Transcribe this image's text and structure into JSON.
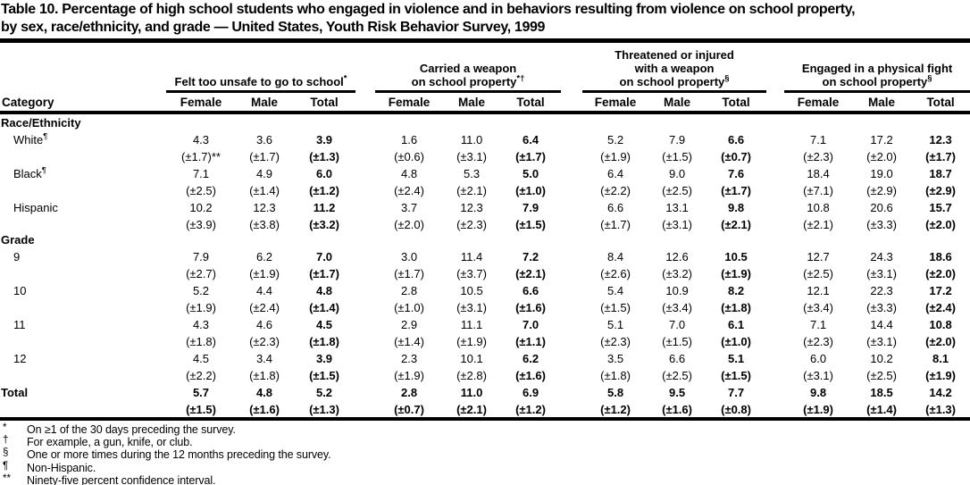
{
  "page": {
    "title_line1": "Table 10. Percentage of high school students who engaged in violence and in behaviors resulting from violence on school property,",
    "title_line2": "by sex, race/ethnicity, and grade — United States, Youth Risk Behavior Survey, 1999"
  },
  "table": {
    "category_header": "Category",
    "col_headers": [
      "Female",
      "Male",
      "Total"
    ],
    "groups": [
      {
        "lines": [
          "Felt too unsafe to go to school"
        ],
        "sup": "*"
      },
      {
        "lines": [
          "Carried a weapon",
          "on school property"
        ],
        "sup": "*†"
      },
      {
        "lines": [
          "Threatened or injured",
          "with a weapon",
          "on school property"
        ],
        "sup": "§"
      },
      {
        "lines": [
          "Engaged in a physical fight",
          "on school property"
        ],
        "sup": "§"
      }
    ],
    "rows": [
      {
        "type": "section",
        "label": "Race/Ethnicity"
      },
      {
        "type": "data",
        "label": "White",
        "label_sup": "¶",
        "indent": true,
        "values": [
          "4.3",
          "3.6",
          "3.9",
          "1.6",
          "11.0",
          "6.4",
          "5.2",
          "7.9",
          "6.6",
          "7.1",
          "17.2",
          "12.3"
        ],
        "ci": [
          "(±1.7)**",
          "(±1.7)",
          "(±1.3)",
          "(±0.6)",
          "(±3.1)",
          "(±1.7)",
          "(±1.9)",
          "(±1.5)",
          "(±0.7)",
          "(±2.3)",
          "(±2.0)",
          "(±1.7)"
        ]
      },
      {
        "type": "data",
        "label": "Black",
        "label_sup": "¶",
        "indent": true,
        "values": [
          "7.1",
          "4.9",
          "6.0",
          "4.8",
          "5.3",
          "5.0",
          "6.4",
          "9.0",
          "7.6",
          "18.4",
          "19.0",
          "18.7"
        ],
        "ci": [
          "(±2.5)",
          "(±1.4)",
          "(±1.2)",
          "(±2.4)",
          "(±2.1)",
          "(±1.0)",
          "(±2.2)",
          "(±2.5)",
          "(±1.7)",
          "(±7.1)",
          "(±2.9)",
          "(±2.9)"
        ]
      },
      {
        "type": "data",
        "label": "Hispanic",
        "indent": true,
        "values": [
          "10.2",
          "12.3",
          "11.2",
          "3.7",
          "12.3",
          "7.9",
          "6.6",
          "13.1",
          "9.8",
          "10.8",
          "20.6",
          "15.7"
        ],
        "ci": [
          "(±3.9)",
          "(±3.8)",
          "(±3.2)",
          "(±2.0)",
          "(±2.3)",
          "(±1.5)",
          "(±1.7)",
          "(±3.1)",
          "(±2.1)",
          "(±2.1)",
          "(±3.3)",
          "(±2.0)"
        ]
      },
      {
        "type": "section",
        "label": "Grade"
      },
      {
        "type": "data",
        "label": "9",
        "indent": true,
        "values": [
          "7.9",
          "6.2",
          "7.0",
          "3.0",
          "11.4",
          "7.2",
          "8.4",
          "12.6",
          "10.5",
          "12.7",
          "24.3",
          "18.6"
        ],
        "ci": [
          "(±2.7)",
          "(±1.9)",
          "(±1.7)",
          "(±1.7)",
          "(±3.7)",
          "(±2.1)",
          "(±2.6)",
          "(±3.2)",
          "(±1.9)",
          "(±2.5)",
          "(±3.1)",
          "(±2.0)"
        ]
      },
      {
        "type": "data",
        "label": "10",
        "indent": true,
        "values": [
          "5.2",
          "4.4",
          "4.8",
          "2.8",
          "10.5",
          "6.6",
          "5.4",
          "10.9",
          "8.2",
          "12.1",
          "22.3",
          "17.2"
        ],
        "ci": [
          "(±1.9)",
          "(±2.4)",
          "(±1.4)",
          "(±1.0)",
          "(±3.1)",
          "(±1.6)",
          "(±1.5)",
          "(±3.4)",
          "(±1.8)",
          "(±3.4)",
          "(±3.3)",
          "(±2.4)"
        ]
      },
      {
        "type": "data",
        "label": "11",
        "indent": true,
        "values": [
          "4.3",
          "4.6",
          "4.5",
          "2.9",
          "11.1",
          "7.0",
          "5.1",
          "7.0",
          "6.1",
          "7.1",
          "14.4",
          "10.8"
        ],
        "ci": [
          "(±1.8)",
          "(±2.3)",
          "(±1.8)",
          "(±1.4)",
          "(±1.9)",
          "(±1.1)",
          "(±2.3)",
          "(±1.5)",
          "(±1.0)",
          "(±2.3)",
          "(±3.1)",
          "(±2.0)"
        ]
      },
      {
        "type": "data",
        "label": "12",
        "indent": true,
        "values": [
          "4.5",
          "3.4",
          "3.9",
          "2.3",
          "10.1",
          "6.2",
          "3.5",
          "6.6",
          "5.1",
          "6.0",
          "10.2",
          "8.1"
        ],
        "ci": [
          "(±2.2)",
          "(±1.8)",
          "(±1.5)",
          "(±1.9)",
          "(±2.8)",
          "(±1.6)",
          "(±1.8)",
          "(±2.5)",
          "(±1.5)",
          "(±3.1)",
          "(±2.5)",
          "(±1.9)"
        ]
      },
      {
        "type": "data",
        "label": "Total",
        "bold": true,
        "values": [
          "5.7",
          "4.8",
          "5.2",
          "2.8",
          "11.0",
          "6.9",
          "5.8",
          "9.5",
          "7.7",
          "9.8",
          "18.5",
          "14.2"
        ],
        "ci": [
          "(±1.5)",
          "(±1.6)",
          "(±1.3)",
          "(±0.7)",
          "(±2.1)",
          "(±1.2)",
          "(±1.2)",
          "(±1.6)",
          "(±0.8)",
          "(±1.9)",
          "(±1.4)",
          "(±1.3)"
        ]
      }
    ]
  },
  "footnotes": [
    {
      "marker": "*",
      "text": "On ≥1 of the 30 days preceding the survey."
    },
    {
      "marker": "†",
      "text": "For example, a gun, knife, or club."
    },
    {
      "marker": "§",
      "text": "One or more times during the 12 months preceding the survey."
    },
    {
      "marker": "¶",
      "text": "Non-Hispanic."
    },
    {
      "marker": "**",
      "text": "Ninety-five percent confidence interval."
    }
  ]
}
